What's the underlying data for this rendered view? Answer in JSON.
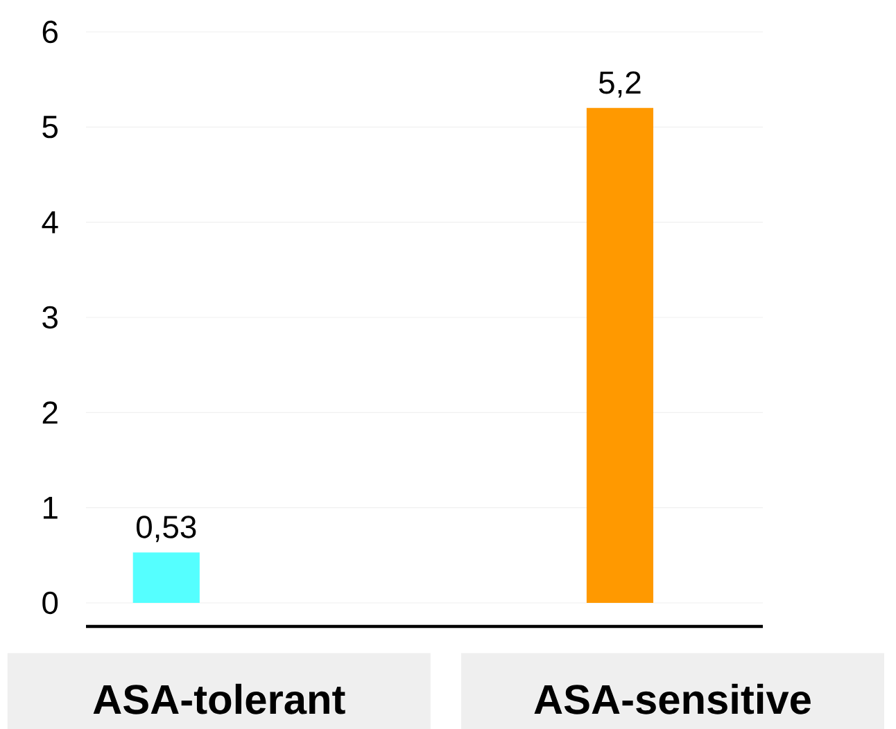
{
  "chart_data": {
    "type": "bar",
    "categories": [
      "ASA-tolerant",
      "ASA-sensitive"
    ],
    "values": [
      0.53,
      5.2
    ],
    "colors": [
      "#55ffff",
      "#ff9900"
    ],
    "value_labels": [
      "0,53",
      "5,2"
    ],
    "ylim": [
      0,
      6
    ],
    "yticks": [
      0,
      1,
      2,
      3,
      4,
      5,
      6
    ],
    "grid": "y"
  }
}
